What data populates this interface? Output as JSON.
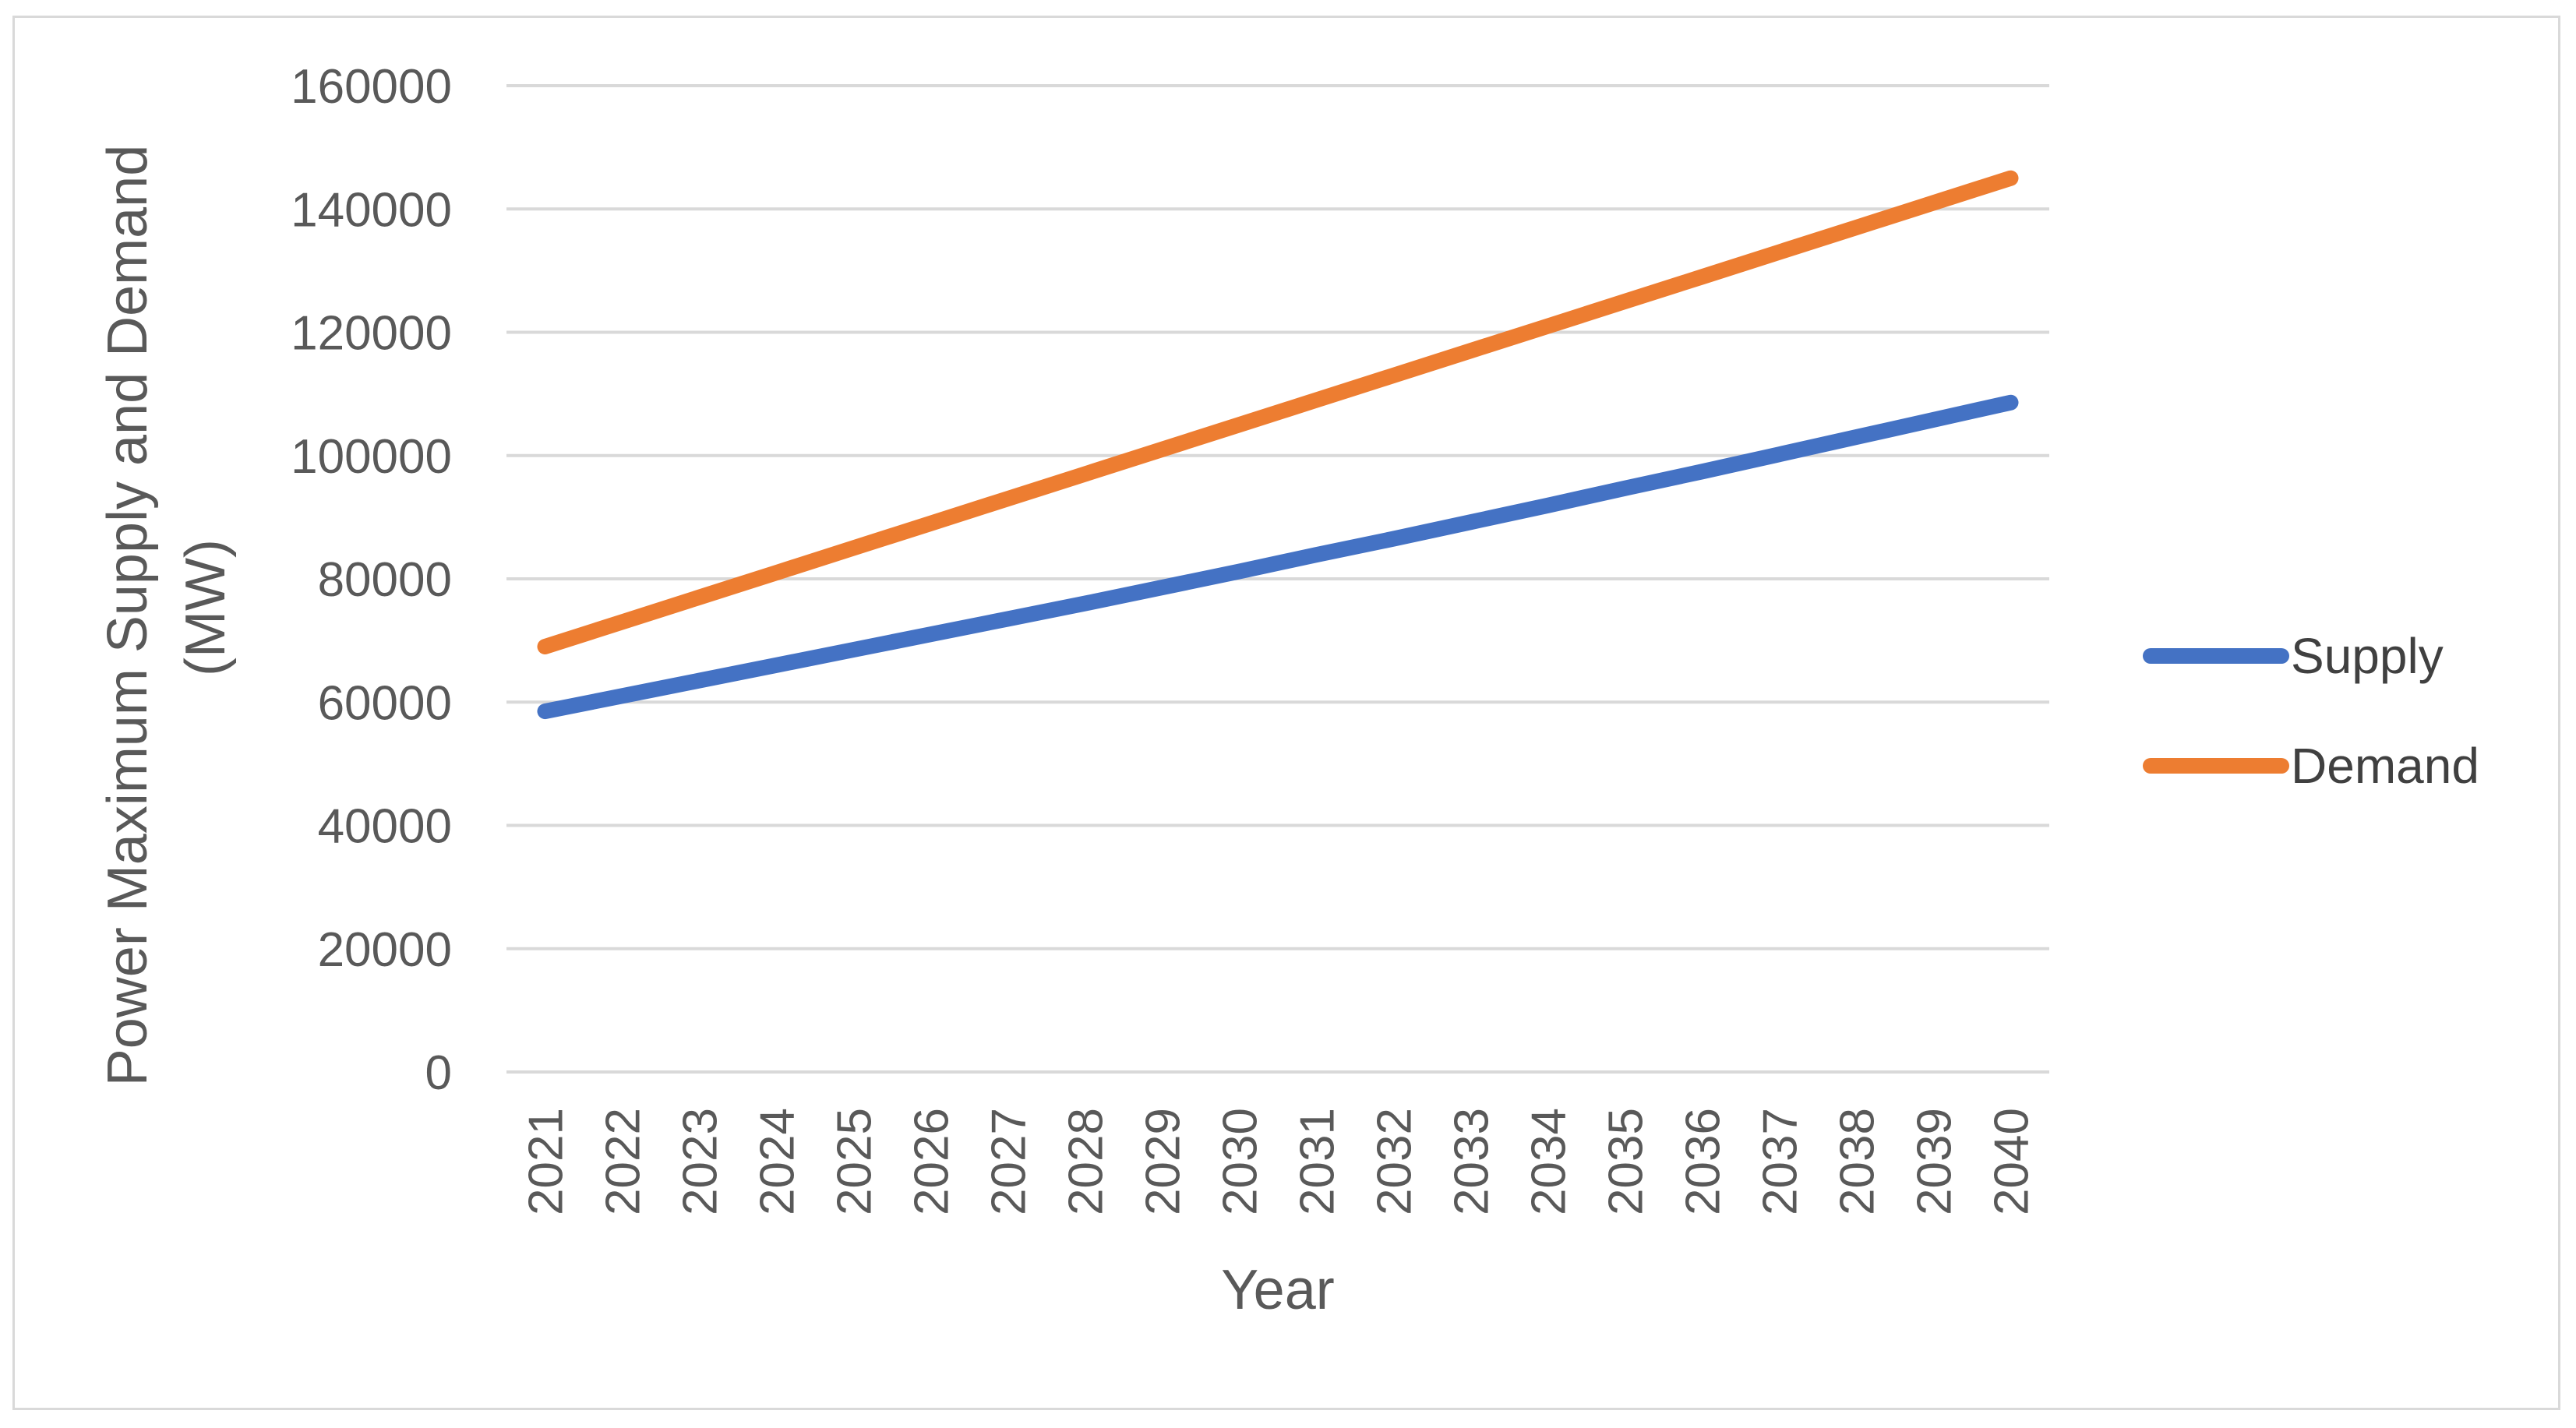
{
  "chart_data": {
    "type": "line",
    "title": "",
    "xlabel": "Year",
    "ylabel": "Power Maximum Supply and Demand (MW)",
    "ylabel_lines": [
      "Power Maximum Supply and Demand",
      "(MW)"
    ],
    "x": [
      "2021",
      "2022",
      "2023",
      "2024",
      "2025",
      "2026",
      "2027",
      "2028",
      "2029",
      "2030",
      "2031",
      "2032",
      "2033",
      "2034",
      "2035",
      "2036",
      "2037",
      "2038",
      "2039",
      "2040"
    ],
    "ylim": [
      0,
      160000
    ],
    "yticks": [
      0,
      20000,
      40000,
      60000,
      80000,
      100000,
      120000,
      140000,
      160000
    ],
    "ytick_labels": [
      "0",
      "20000",
      "40000",
      "60000",
      "80000",
      "100000",
      "120000",
      "140000",
      "160000"
    ],
    "grid": true,
    "legend_position": "right",
    "series": [
      {
        "name": "Supply",
        "color": "#4472C4",
        "values": [
          58500,
          61000,
          63500,
          66000,
          68500,
          71000,
          73500,
          76000,
          78600,
          81200,
          83900,
          86500,
          89200,
          91900,
          94700,
          97400,
          100200,
          103000,
          105800,
          108600
        ]
      },
      {
        "name": "Demand",
        "color": "#ED7D31",
        "values": [
          69000,
          73000,
          77000,
          81000,
          85000,
          89000,
          93000,
          97000,
          101000,
          105000,
          109000,
          113000,
          117000,
          121000,
          125000,
          129000,
          133000,
          137000,
          141000,
          145000
        ]
      }
    ]
  }
}
